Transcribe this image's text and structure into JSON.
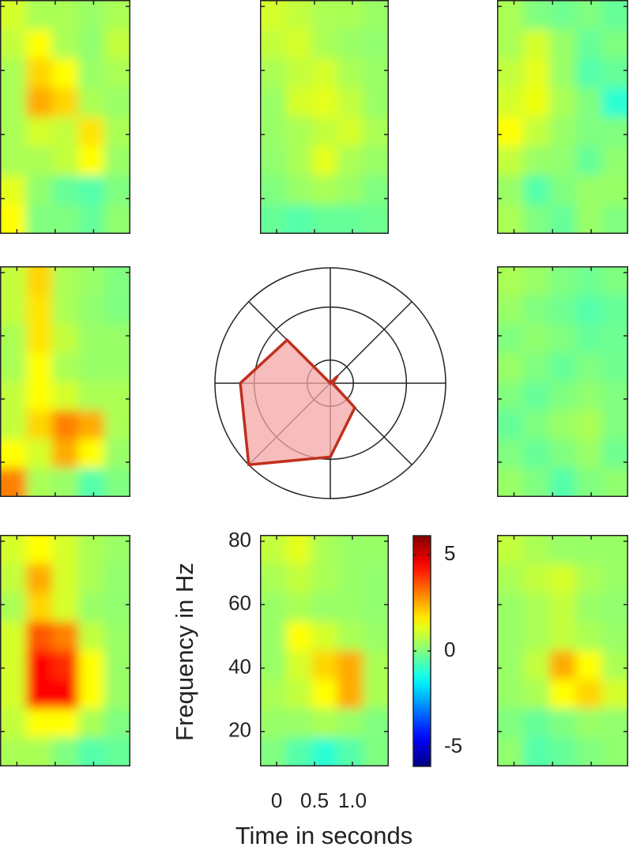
{
  "chart_data": {
    "type": "heatmap-grid",
    "colormap": "jet",
    "xlabel": "Time in seconds",
    "ylabel": "Frequency in Hz",
    "xlim": [
      -0.22,
      1.48
    ],
    "xticks": [
      0,
      0.5,
      {
        "value": 1,
        "label": "1.0"
      }
    ],
    "ylim": [
      9,
      82
    ],
    "yticks": [
      20,
      40,
      60,
      80
    ],
    "clim": [
      -6,
      6
    ],
    "colorbar_ticks": [
      5,
      0,
      -5
    ],
    "panels": [
      {
        "values": [
          [
            1,
            0.5,
            0.5,
            0.3,
            0.5
          ],
          [
            0.8,
            1.5,
            0.5,
            0.2,
            0.8
          ],
          [
            0.5,
            2,
            1.5,
            0.3,
            0.5
          ],
          [
            0.5,
            2.5,
            2,
            0.5,
            0.3
          ],
          [
            0.5,
            1,
            0.8,
            1.8,
            0.5
          ],
          [
            0.5,
            0.5,
            0.8,
            1.5,
            0.3
          ],
          [
            1.2,
            0.2,
            -0.3,
            -0.5,
            0
          ],
          [
            1.5,
            0,
            0,
            -0.3,
            0.2
          ]
        ]
      },
      {
        "values": [
          [
            1,
            0.8,
            0.5,
            0.5,
            0.3
          ],
          [
            0.8,
            1,
            0.5,
            0.3,
            0.2
          ],
          [
            0.5,
            0.8,
            1,
            0.5,
            0.3
          ],
          [
            0.3,
            1,
            1.2,
            0.8,
            0.3
          ],
          [
            0.3,
            0.5,
            0.8,
            1,
            0.5
          ],
          [
            0.2,
            0.5,
            1.2,
            0.5,
            0.3
          ],
          [
            0,
            0.3,
            0.5,
            0.3,
            0
          ],
          [
            -0.3,
            -0.5,
            -0.3,
            -0.3,
            -0.2
          ]
        ]
      },
      {
        "values": [
          [
            0.5,
            0,
            -0.2,
            0,
            -0.3
          ],
          [
            0.5,
            1,
            0.3,
            -0.3,
            0
          ],
          [
            0.8,
            1.2,
            0.3,
            -0.5,
            -0.3
          ],
          [
            1,
            1.3,
            0.5,
            0,
            -1
          ],
          [
            1.5,
            0.8,
            0.3,
            0,
            0
          ],
          [
            0.8,
            0.3,
            0.2,
            -0.3,
            0.2
          ],
          [
            0.3,
            -0.5,
            0,
            0.3,
            0.3
          ],
          [
            0.5,
            0,
            -0.3,
            0.3,
            0
          ]
        ]
      },
      {
        "values": [
          [
            0.8,
            2,
            0.5,
            0.3,
            0
          ],
          [
            0.8,
            1.8,
            0.5,
            0.2,
            0
          ],
          [
            0.5,
            1.8,
            0.8,
            0.3,
            0.3
          ],
          [
            0.5,
            1.5,
            0.5,
            0.3,
            0.3
          ],
          [
            0.8,
            1.5,
            1,
            0.5,
            0.5
          ],
          [
            0.8,
            2,
            3,
            2.5,
            0.5
          ],
          [
            1.5,
            1,
            2.5,
            1.5,
            0.3
          ],
          [
            3,
            0.5,
            0.3,
            -0.5,
            0
          ]
        ]
      },
      {
        "values": [
          [
            0.5,
            0.3,
            0,
            -0.2,
            0
          ],
          [
            0.3,
            0,
            -0.2,
            -0.5,
            -0.3
          ],
          [
            0,
            0.2,
            0,
            -0.3,
            -0.2
          ],
          [
            0.3,
            0,
            -0.3,
            0,
            -0.2
          ],
          [
            0,
            -0.3,
            0,
            0.2,
            0
          ],
          [
            -0.3,
            0,
            0.3,
            0.5,
            0
          ],
          [
            0,
            -0.3,
            0,
            0.3,
            -0.2
          ],
          [
            0.3,
            0,
            -0.5,
            0,
            0.2
          ]
        ]
      },
      {
        "values": [
          [
            1,
            1.5,
            1,
            0.5,
            0.3
          ],
          [
            0.8,
            2.5,
            1,
            0.5,
            0.2
          ],
          [
            0.5,
            2,
            1,
            0.3,
            0.2
          ],
          [
            1,
            3.5,
            3,
            0.8,
            0.3
          ],
          [
            1,
            4.5,
            4,
            1.5,
            0.3
          ],
          [
            1,
            4.5,
            4.5,
            1.5,
            0.3
          ],
          [
            0.8,
            1.5,
            1.5,
            0.5,
            0
          ],
          [
            0.5,
            0.5,
            0,
            -0.5,
            -0.3
          ]
        ]
      },
      {
        "values": [
          [
            0.8,
            1.2,
            0.5,
            0.3,
            0.3
          ],
          [
            0.5,
            0.8,
            0.5,
            0.3,
            0.2
          ],
          [
            0.3,
            0.5,
            0.3,
            0.3,
            0.2
          ],
          [
            0.3,
            1.5,
            1,
            0.5,
            0.3
          ],
          [
            0.3,
            1,
            2,
            2.5,
            0.5
          ],
          [
            0.5,
            0.8,
            1.5,
            2.5,
            0.5
          ],
          [
            0.3,
            0.3,
            0.5,
            0.3,
            0
          ],
          [
            0,
            -0.5,
            -1,
            -0.5,
            0
          ]
        ]
      },
      {
        "values": [
          [
            0.8,
            0.5,
            0.3,
            0.3,
            0.3
          ],
          [
            0.5,
            0.8,
            1,
            0.5,
            0.3
          ],
          [
            0.3,
            0.5,
            0.8,
            0.3,
            0.2
          ],
          [
            0.3,
            0.5,
            0.8,
            0.5,
            0.3
          ],
          [
            0.3,
            0.8,
            2.5,
            1.5,
            0.5
          ],
          [
            0.3,
            0.5,
            1.5,
            2,
            1
          ],
          [
            0,
            -0.3,
            0,
            0.3,
            0.2
          ],
          [
            0.2,
            -0.5,
            -0.3,
            0,
            0.2
          ]
        ]
      }
    ],
    "polar": {
      "type": "radar",
      "rlim": [
        0,
        1
      ],
      "rings": [
        0.2,
        0.66,
        1
      ],
      "values": [
        0,
        0.09,
        0.02,
        0.3,
        0.64,
        1.0,
        0.78,
        0.53
      ],
      "color": "#c0301e",
      "fill": "#f4a6a6"
    }
  }
}
